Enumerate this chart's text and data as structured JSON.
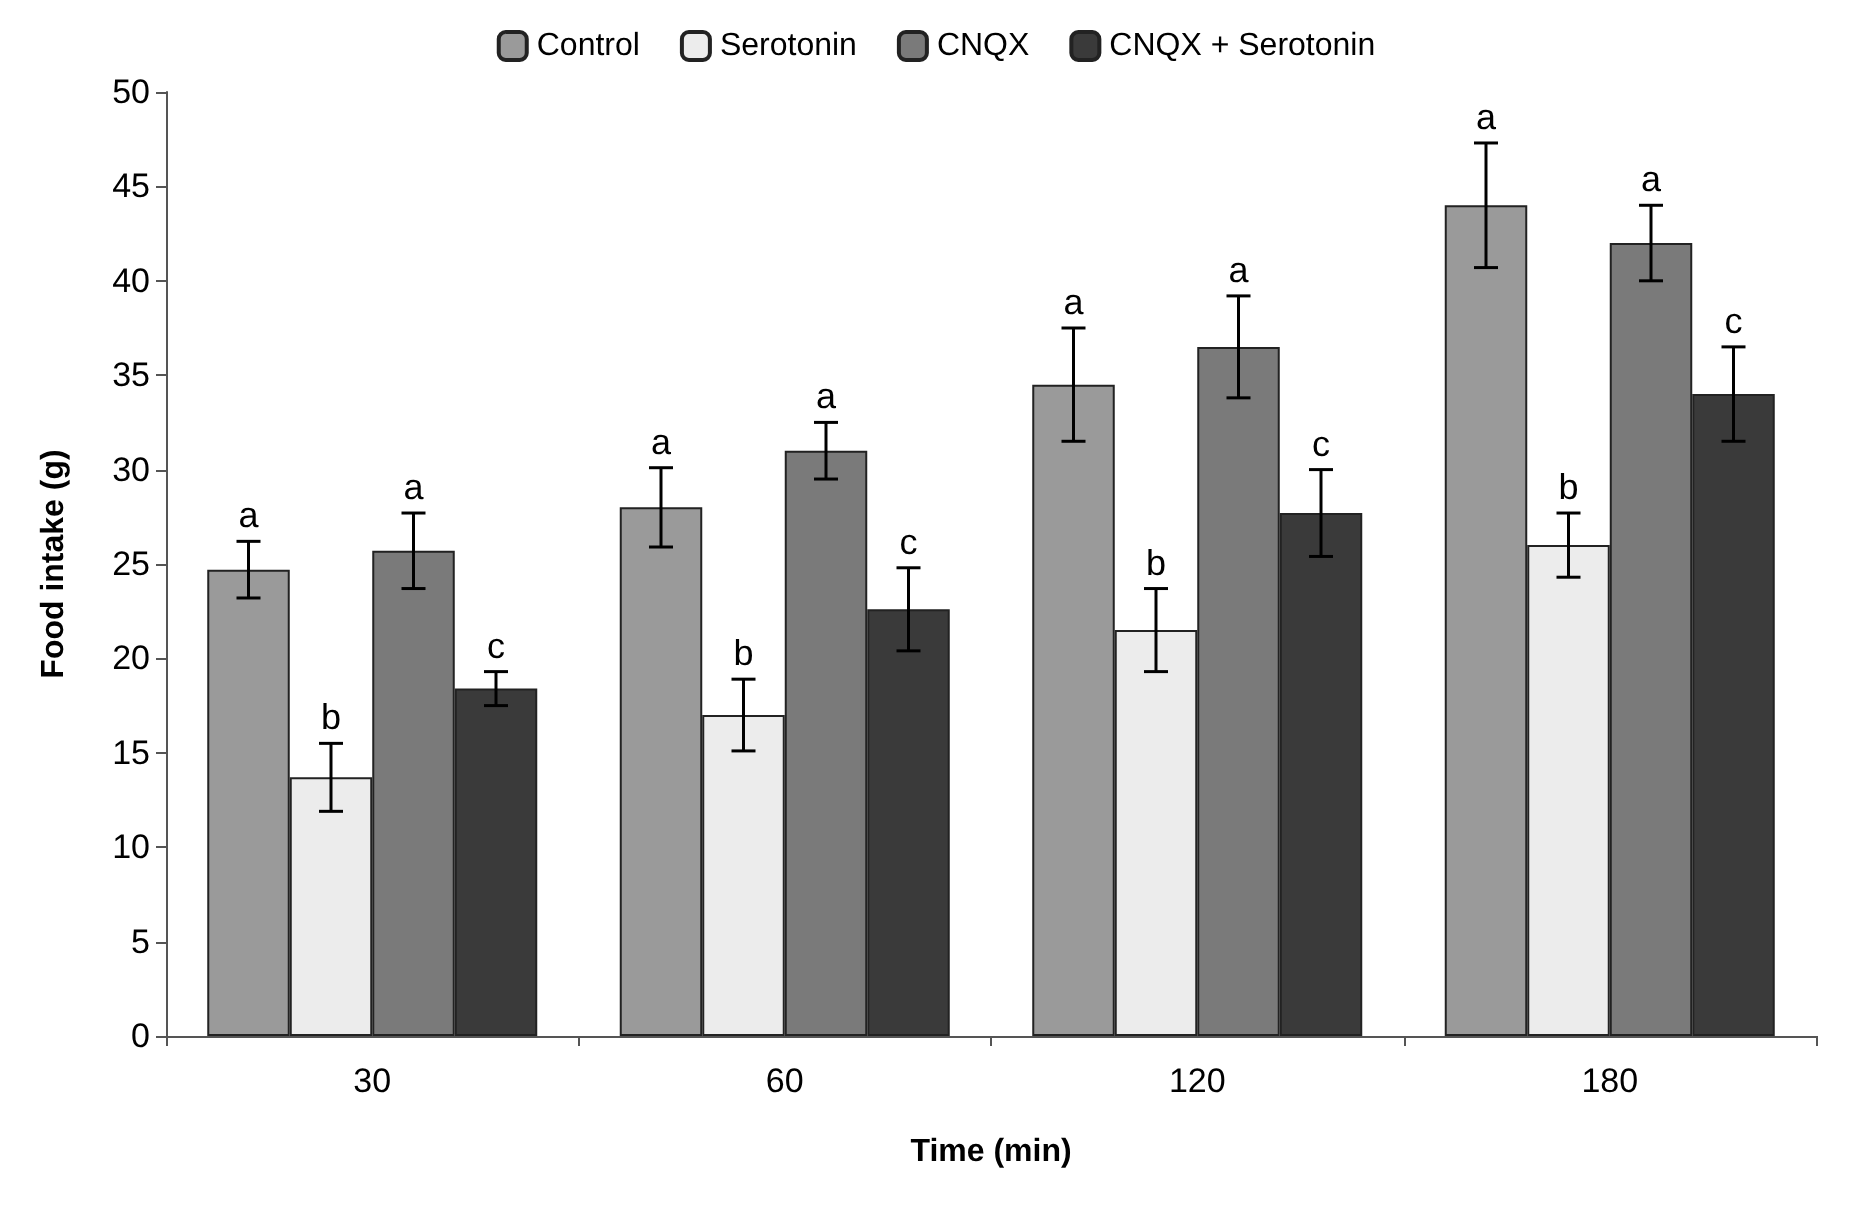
{
  "chart_data": {
    "type": "bar",
    "xlabel": "Time (min)",
    "ylabel": "Food intake (g)",
    "categories": [
      "30",
      "60",
      "120",
      "180"
    ],
    "series": [
      {
        "name": "Control",
        "color": "#9a9a9a",
        "values": [
          24.7,
          28,
          34.5,
          44
        ],
        "errors": [
          1.5,
          2.1,
          3.0,
          3.3
        ],
        "value_labels": [
          "a",
          "a",
          "a",
          "a"
        ]
      },
      {
        "name": "Serotonin",
        "color": "#ececec",
        "values": [
          13.7,
          17,
          21.5,
          26
        ],
        "errors": [
          1.8,
          1.9,
          2.2,
          1.7
        ],
        "value_labels": [
          "b",
          "b",
          "b",
          "b"
        ]
      },
      {
        "name": "CNQX",
        "color": "#7a7a7a",
        "values": [
          25.7,
          31,
          36.5,
          42
        ],
        "errors": [
          2.0,
          1.5,
          2.7,
          2.0
        ],
        "value_labels": [
          "a",
          "a",
          "a",
          "a"
        ]
      },
      {
        "name": "CNQX + Serotonin",
        "color": "#3a3a3a",
        "values": [
          18.4,
          22.6,
          27.7,
          34
        ],
        "errors": [
          0.9,
          2.2,
          2.3,
          2.5
        ],
        "value_labels": [
          "c",
          "c",
          "c",
          "c"
        ]
      }
    ],
    "ylim": [
      0,
      50
    ],
    "yticks": [
      0,
      5,
      10,
      15,
      20,
      25,
      30,
      35,
      40,
      45,
      50
    ],
    "grid": false,
    "legend": "top"
  }
}
